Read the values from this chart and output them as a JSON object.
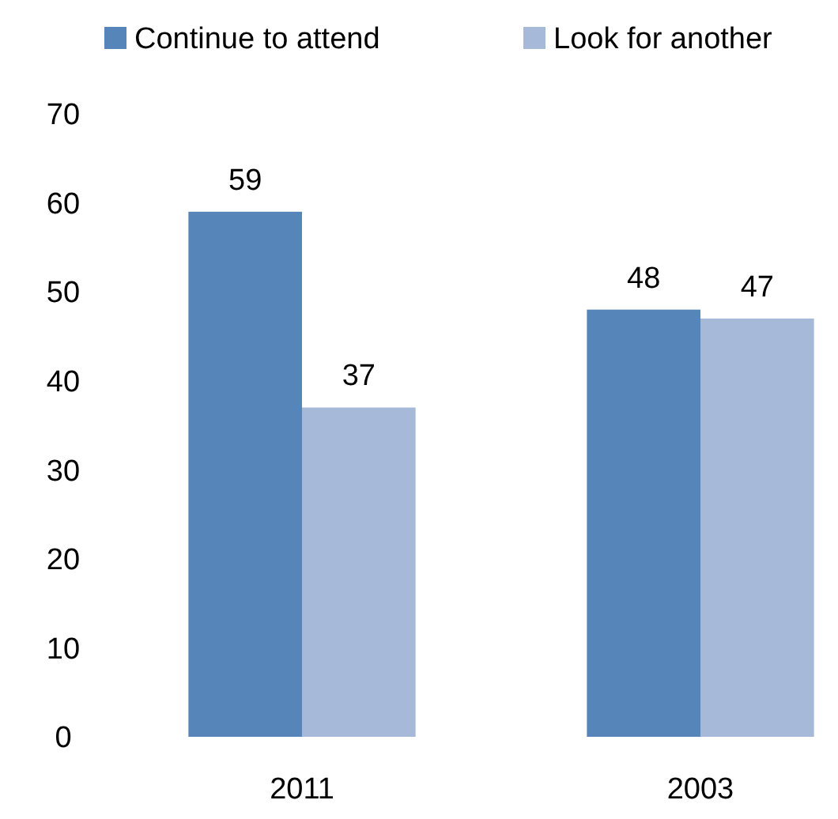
{
  "chart_data": {
    "type": "bar",
    "categories": [
      "2011",
      "2003"
    ],
    "series": [
      {
        "name": "Continue to attend",
        "color": "#5585b9",
        "values": [
          59,
          48
        ]
      },
      {
        "name": "Look for another",
        "color": "#a6b9d9",
        "values": [
          37,
          47
        ]
      }
    ],
    "ylim": [
      0,
      70
    ],
    "yticks": [
      0,
      10,
      20,
      30,
      40,
      50,
      60,
      70
    ],
    "data_labels": true,
    "legend": "top",
    "grid": false
  }
}
